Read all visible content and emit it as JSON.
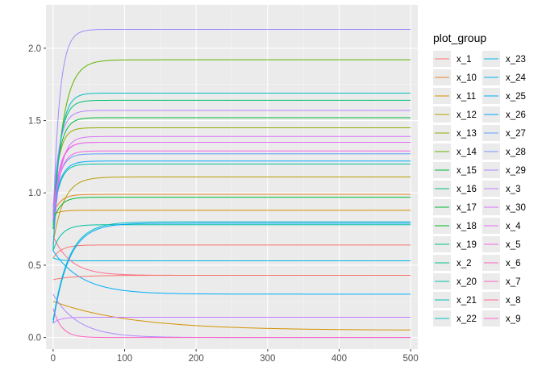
{
  "chart_data": {
    "type": "line",
    "title": "",
    "xlabel": "",
    "ylabel": "",
    "xlim": [
      -10,
      510
    ],
    "ylim": [
      -0.08,
      2.3
    ],
    "x_ticks": [
      0,
      100,
      200,
      300,
      400,
      500
    ],
    "y_ticks": [
      0.0,
      0.5,
      1.0,
      1.5,
      2.0
    ],
    "x_tick_labels": [
      "0",
      "100",
      "200",
      "300",
      "400",
      "500"
    ],
    "y_tick_labels": [
      "0.0",
      "0.5",
      "1.0",
      "1.5",
      "2.0"
    ],
    "grid": true,
    "legend_title": "plot_group",
    "legend_position": "right",
    "x_range": [
      0,
      500
    ],
    "series": [
      {
        "name": "x_1",
        "color": "#F8766D",
        "start": 0.55,
        "final": 0.64,
        "tau": 12
      },
      {
        "name": "x_10",
        "color": "#E88526",
        "start": 0.85,
        "final": 0.99,
        "tau": 10
      },
      {
        "name": "x_11",
        "color": "#D39200",
        "start": 0.25,
        "final": 0.05,
        "tau": 110
      },
      {
        "name": "x_12",
        "color": "#B79F00",
        "start": 0.65,
        "final": 1.11,
        "tau": 15
      },
      {
        "name": "x_13",
        "color": "#93AA00",
        "start": 0.85,
        "final": 1.45,
        "tau": 8
      },
      {
        "name": "x_14",
        "color": "#5EB300",
        "start": 0.75,
        "final": 1.92,
        "tau": 14
      },
      {
        "name": "x_15",
        "color": "#00BA38",
        "start": 0.85,
        "final": 1.52,
        "tau": 9
      },
      {
        "name": "x_16",
        "color": "#00BF74",
        "start": 0.75,
        "final": 1.64,
        "tau": 9
      },
      {
        "name": "x_17",
        "color": "#00C19F",
        "start": 0.8,
        "final": 1.2,
        "tau": 9
      },
      {
        "name": "x_18",
        "color": "#00BFC4",
        "start": 0.12,
        "final": 0.8,
        "tau": 22
      },
      {
        "name": "x_19",
        "color": "#00B9E3",
        "start": 0.55,
        "final": 0.53,
        "tau": 10
      },
      {
        "name": "x_2",
        "color": "#00ADFA",
        "start": 0.6,
        "final": 0.3,
        "tau": 40
      },
      {
        "name": "x_20",
        "color": "#619CFF",
        "start": 0.85,
        "final": 1.27,
        "tau": 9
      },
      {
        "name": "x_21",
        "color": "#AE87FF",
        "start": 0.3,
        "final": 0.0,
        "tau": 35
      },
      {
        "name": "x_22",
        "color": "#DB72FB",
        "start": 0.6,
        "final": 1.39,
        "tau": 9
      },
      {
        "name": "x_23",
        "color": "#F564E3",
        "start": 0.8,
        "final": 1.29,
        "tau": 9
      },
      {
        "name": "x_24",
        "color": "#FF61C3",
        "start": 0.2,
        "final": 0.0,
        "tau": 12
      },
      {
        "name": "x_25",
        "color": "#FF6C91",
        "start": 0.7,
        "final": 0.43,
        "tau": 25
      },
      {
        "name": "x_26",
        "color": "#F8766D",
        "start": 0.4,
        "final": 0.43,
        "tau": 30
      },
      {
        "name": "x_27",
        "color": "#D39200",
        "start": 0.85,
        "final": 0.88,
        "tau": 10
      },
      {
        "name": "x_28",
        "color": "#00BA38",
        "start": 0.8,
        "final": 0.97,
        "tau": 10
      },
      {
        "name": "x_29",
        "color": "#00C19F",
        "start": 0.6,
        "final": 0.78,
        "tau": 12
      },
      {
        "name": "x_3",
        "color": "#00A9FF",
        "start": 0.85,
        "final": 1.22,
        "tau": 10
      },
      {
        "name": "x_30",
        "color": "#C77CFF",
        "start": 0.1,
        "final": 0.14,
        "tau": 10
      },
      {
        "name": "x_4",
        "color": "#FF61CC",
        "start": 0.85,
        "final": 1.35,
        "tau": 9
      },
      {
        "name": "x_5",
        "color": "#00A5FF",
        "start": 0.1,
        "final": 0.79,
        "tau": 22
      },
      {
        "name": "x_6",
        "color": "#B983FF",
        "start": 0.9,
        "final": 1.57,
        "tau": 9
      },
      {
        "name": "x_7",
        "color": "#00BFC4",
        "start": 0.6,
        "final": 1.69,
        "tau": 9
      },
      {
        "name": "x_8",
        "color": "#E76BF3",
        "start": 0.8,
        "final": 1.35,
        "tau": 9
      },
      {
        "name": "x_9",
        "color": "#A58AFF",
        "start": 0.8,
        "final": 2.13,
        "tau": 9
      }
    ]
  },
  "legend": {
    "title": "plot_group",
    "col1": [
      {
        "label": "x_1",
        "color": "#F8766D"
      },
      {
        "label": "x_10",
        "color": "#E88526"
      },
      {
        "label": "x_11",
        "color": "#D39200"
      },
      {
        "label": "x_12",
        "color": "#B79F00"
      },
      {
        "label": "x_13",
        "color": "#93AA00"
      },
      {
        "label": "x_14",
        "color": "#5EB300"
      },
      {
        "label": "x_15",
        "color": "#00BA38"
      },
      {
        "label": "x_16",
        "color": "#00BF74"
      },
      {
        "label": "x_17",
        "color": "#00BA38"
      },
      {
        "label": "x_18",
        "color": "#00B81F"
      },
      {
        "label": "x_19",
        "color": "#00BF7D"
      },
      {
        "label": "x_2",
        "color": "#00C08B"
      },
      {
        "label": "x_20",
        "color": "#00C1A3"
      },
      {
        "label": "x_21",
        "color": "#00BFB4"
      },
      {
        "label": "x_22",
        "color": "#00BFC4"
      }
    ],
    "col2": [
      {
        "label": "x_23",
        "color": "#00B9E3"
      },
      {
        "label": "x_24",
        "color": "#00B2F3"
      },
      {
        "label": "x_25",
        "color": "#00ADFA"
      },
      {
        "label": "x_26",
        "color": "#00A5FF"
      },
      {
        "label": "x_27",
        "color": "#619CFF"
      },
      {
        "label": "x_28",
        "color": "#7997FF"
      },
      {
        "label": "x_29",
        "color": "#AE87FF"
      },
      {
        "label": "x_3",
        "color": "#C77CFF"
      },
      {
        "label": "x_30",
        "color": "#DB72FB"
      },
      {
        "label": "x_4",
        "color": "#E76BF3"
      },
      {
        "label": "x_5",
        "color": "#F564E3"
      },
      {
        "label": "x_6",
        "color": "#FF61C3"
      },
      {
        "label": "x_7",
        "color": "#FF62BC"
      },
      {
        "label": "x_8",
        "color": "#FF6C91"
      },
      {
        "label": "x_9",
        "color": "#FD61D1"
      }
    ]
  }
}
